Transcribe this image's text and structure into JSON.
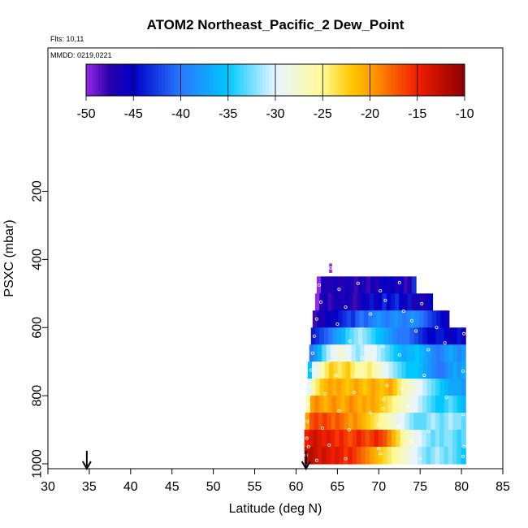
{
  "chart_data": {
    "type": "heatmap",
    "title": "ATOM2 Northeast_Pacific_2 Dew_Point",
    "flights_label": "Flts: 10,11",
    "dates_label": "MMDD: 0219,0221",
    "xlabel": "Latitude (deg N)",
    "ylabel": "PSXC (mbar)",
    "xlim": [
      30,
      85
    ],
    "ylim": [
      1000,
      0
    ],
    "x_ticks": [
      30,
      35,
      40,
      45,
      50,
      55,
      60,
      65,
      70,
      75,
      80,
      85
    ],
    "y_ticks": [
      200,
      400,
      600,
      800,
      1000
    ],
    "colorbar": {
      "range": [
        -50,
        -10
      ],
      "ticks": [
        -50,
        -45,
        -40,
        -35,
        -30,
        -25,
        -20,
        -15,
        -10
      ],
      "position": "top"
    },
    "arrows_lat": [
      34.7,
      61.2
    ],
    "layers": [
      {
        "p": 425,
        "x0": 64.0,
        "x1": 64.3,
        "values": [
          -50
        ]
      },
      {
        "p": 475,
        "x0": 62.5,
        "x1": 74.5,
        "values": [
          -50,
          -46,
          -47,
          -47,
          -46,
          -47,
          -47,
          -46,
          -47,
          -48,
          -46,
          -47,
          -48,
          -46,
          -47,
          -46,
          -45,
          -46,
          -45,
          -47,
          -45,
          -48,
          -47,
          -43
        ]
      },
      {
        "p": 525,
        "x0": 62.3,
        "x1": 76.5,
        "values": [
          -50,
          -47,
          -46,
          -48,
          -47,
          -46,
          -47,
          -46,
          -47,
          -48,
          -47,
          -45,
          -46,
          -44,
          -46,
          -45,
          -43,
          -45,
          -44,
          -43,
          -45,
          -46,
          -44,
          -47,
          -46,
          -47,
          -46,
          -45
        ]
      },
      {
        "p": 575,
        "x0": 62.0,
        "x1": 78.5,
        "values": [
          -48,
          -46,
          -47,
          -45,
          -46,
          -45,
          -44,
          -43,
          -42,
          -43,
          -41,
          -40,
          -41,
          -40,
          -39,
          -38,
          -39,
          -40,
          -39,
          -38,
          -39,
          -40,
          -39,
          -38,
          -39,
          -40,
          -41,
          -42,
          -43,
          -44,
          -45,
          -46
        ]
      },
      {
        "p": 625,
        "x0": 61.8,
        "x1": 80.5,
        "values": [
          -44,
          -43,
          -42,
          -41,
          -40,
          -38,
          -37,
          -36,
          -34,
          -33,
          -32,
          -31,
          -32,
          -33,
          -34,
          -35,
          -36,
          -37,
          -38,
          -39,
          -40,
          -40,
          -40,
          -41,
          -42,
          -43,
          -44,
          -45,
          -45,
          -44,
          -44,
          -45,
          -46,
          -45,
          -44,
          -46
        ]
      },
      {
        "p": 675,
        "x0": 61.6,
        "x1": 80.5,
        "values": [
          -40,
          -38,
          -36,
          -33,
          -31,
          -30,
          -29,
          -28,
          -29,
          -30,
          -31,
          -32,
          -31,
          -30,
          -29,
          -30,
          -31,
          -32,
          -33,
          -34,
          -35,
          -36,
          -37,
          -36,
          -36,
          -35,
          -36,
          -37,
          -38,
          -39,
          -40,
          -39,
          -38,
          -37,
          -38,
          -39,
          -38
        ]
      },
      {
        "p": 725,
        "x0": 61.4,
        "x1": 80.5,
        "values": [
          -35,
          -30,
          -28,
          -26,
          -24,
          -22,
          -23,
          -24,
          -23,
          -22,
          -24,
          -25,
          -26,
          -25,
          -24,
          -26,
          -27,
          -29,
          -30,
          -31,
          -32,
          -33,
          -34,
          -35,
          -35,
          -35,
          -36,
          -37,
          -38,
          -39,
          -40,
          -40,
          -39,
          -38,
          -37,
          -38,
          -37
        ]
      },
      {
        "p": 775,
        "x0": 61.3,
        "x1": 80.5,
        "values": [
          -30,
          -26,
          -24,
          -22,
          -21,
          -20,
          -21,
          -20,
          -21,
          -22,
          -21,
          -20,
          -21,
          -22,
          -21,
          -20,
          -21,
          -22,
          -21,
          -20,
          -22,
          -24,
          -26,
          -27,
          -28,
          -29,
          -30,
          -31,
          -32,
          -33,
          -34,
          -35,
          -36,
          -37,
          -37,
          -37,
          -38
        ]
      },
      {
        "p": 825,
        "x0": 61.2,
        "x1": 80.5,
        "values": [
          -25,
          -20,
          -19,
          -20,
          -21,
          -20,
          -19,
          -20,
          -21,
          -20,
          -19,
          -20,
          -21,
          -20,
          -21,
          -20,
          -21,
          -22,
          -23,
          -24,
          -25,
          -26,
          -27,
          -28,
          -29,
          -30,
          -31,
          -32,
          -33,
          -34,
          -35,
          -35,
          -34,
          -33,
          -34,
          -35,
          -36
        ]
      },
      {
        "p": 875,
        "x0": 61.1,
        "x1": 80.5,
        "values": [
          -20,
          -17,
          -16,
          -17,
          -16,
          -17,
          -18,
          -17,
          -18,
          -19,
          -20,
          -19,
          -20,
          -21,
          -22,
          -23,
          -24,
          -25,
          -26,
          -27,
          -28,
          -29,
          -30,
          -31,
          -32,
          -33,
          -33,
          -33,
          -32,
          -31,
          -32,
          -33,
          -32,
          -31,
          -32,
          -32,
          -33
        ]
      },
      {
        "p": 925,
        "x0": 61.0,
        "x1": 80.5,
        "values": [
          -15,
          -14,
          -13,
          -14,
          -15,
          -14,
          -15,
          -16,
          -15,
          -16,
          -17,
          -16,
          -15,
          -16,
          -17,
          -16,
          -15,
          -16,
          -17,
          -19,
          -21,
          -23,
          -25,
          -27,
          -28,
          -29,
          -30,
          -31,
          -32,
          -33,
          -32,
          -33,
          -32,
          -32,
          -33,
          -34,
          -33
        ]
      },
      {
        "p": 975,
        "x0": 61.0,
        "x1": 80.5,
        "values": [
          -13,
          -12,
          -13,
          -14,
          -13,
          -14,
          -15,
          -14,
          -15,
          -16,
          -15,
          -16,
          -17,
          -18,
          -19,
          -20,
          -21,
          -22,
          -23,
          -24,
          -25,
          -26,
          -27,
          -28,
          -29,
          -30,
          -31,
          -32,
          -33,
          -32,
          -31,
          -32,
          -33,
          -32,
          -33,
          -34,
          -35
        ]
      }
    ],
    "markers": [
      [
        64.2,
        425
      ],
      [
        62.8,
        475
      ],
      [
        65.2,
        488
      ],
      [
        67.5,
        470
      ],
      [
        70.2,
        492
      ],
      [
        72.5,
        468
      ],
      [
        63.0,
        525
      ],
      [
        66.0,
        540
      ],
      [
        70.8,
        520
      ],
      [
        73.0,
        552
      ],
      [
        75.2,
        530
      ],
      [
        62.5,
        575
      ],
      [
        65.0,
        590
      ],
      [
        69.0,
        560
      ],
      [
        74.0,
        580
      ],
      [
        77.0,
        600
      ],
      [
        62.2,
        625
      ],
      [
        66.5,
        640
      ],
      [
        70.5,
        655
      ],
      [
        74.5,
        610
      ],
      [
        78.0,
        645
      ],
      [
        80.3,
        618
      ],
      [
        62.0,
        675
      ],
      [
        64.0,
        700
      ],
      [
        68.0,
        690
      ],
      [
        72.5,
        680
      ],
      [
        76.0,
        665
      ],
      [
        61.8,
        725
      ],
      [
        64.8,
        740
      ],
      [
        67.2,
        745
      ],
      [
        71.0,
        770
      ],
      [
        75.5,
        740
      ],
      [
        80.2,
        728
      ],
      [
        61.6,
        775
      ],
      [
        63.5,
        795
      ],
      [
        67.0,
        790
      ],
      [
        70.6,
        810
      ],
      [
        72.8,
        780
      ],
      [
        78.2,
        805
      ],
      [
        61.5,
        825
      ],
      [
        65.2,
        845
      ],
      [
        69.0,
        850
      ],
      [
        70.5,
        838
      ],
      [
        73.5,
        830
      ],
      [
        80.2,
        855
      ],
      [
        61.4,
        875
      ],
      [
        63.2,
        895
      ],
      [
        66.4,
        900
      ],
      [
        70.0,
        885
      ],
      [
        72.4,
        890
      ],
      [
        76.0,
        905
      ],
      [
        61.3,
        925
      ],
      [
        61.5,
        950
      ],
      [
        64.0,
        945
      ],
      [
        70.0,
        955
      ],
      [
        74.0,
        935
      ],
      [
        80.3,
        950
      ],
      [
        61.2,
        975
      ],
      [
        62.5,
        990
      ],
      [
        66.0,
        985
      ],
      [
        70.2,
        970
      ],
      [
        75.0,
        985
      ],
      [
        80.2,
        978
      ]
    ]
  }
}
